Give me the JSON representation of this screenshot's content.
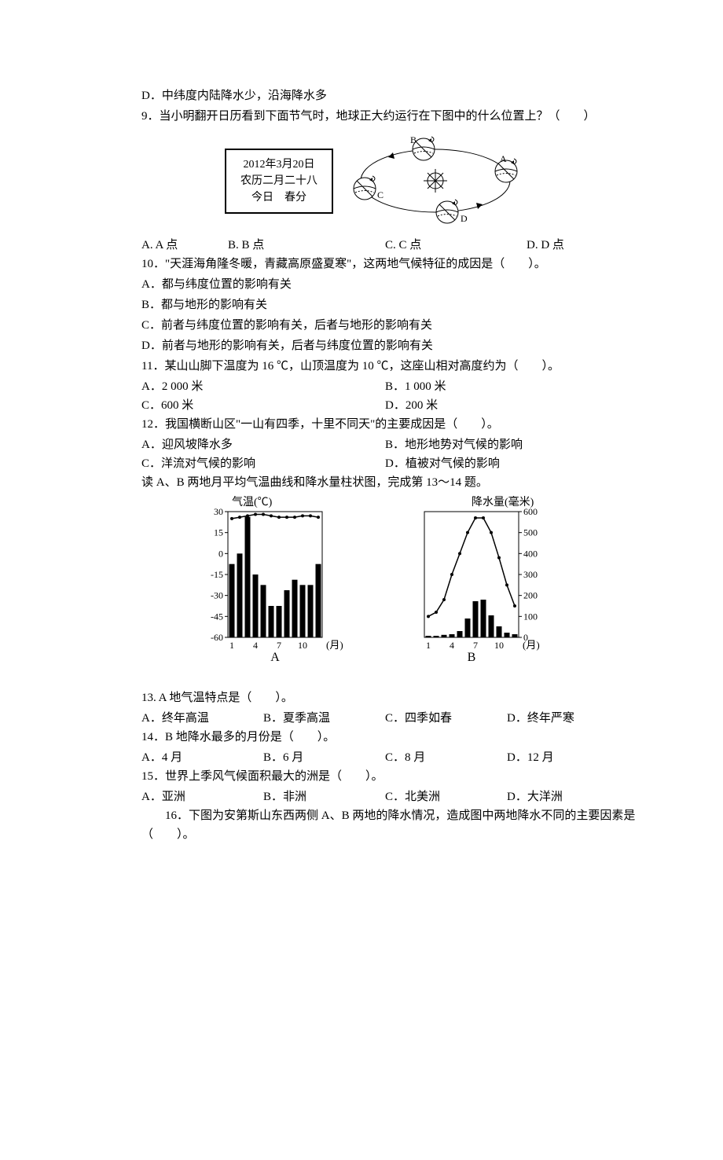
{
  "q8d": "D．中纬度内陆降水少，沿海降水多",
  "q9": {
    "stem": "9．当小明翻开日历看到下面节气时，地球正大约运行在下图中的什么位置上？（　　）",
    "calendar": {
      "l1": "2012年3月20日",
      "l2": "农历二月二十八",
      "l3": "今日　春分"
    },
    "labels": {
      "A": "A",
      "B": "B",
      "C": "C",
      "D": "D"
    },
    "A": "A. A 点",
    "B": "B. B 点",
    "C": "C. C 点",
    "D": "D. D 点"
  },
  "q10": {
    "stem": "10．\"天涯海角隆冬暖，青藏高原盛夏寒\"，这两地气候特征的成因是（　　）。",
    "A": "A．都与纬度位置的影响有关",
    "B": "B．都与地形的影响有关",
    "C": "C．前者与纬度位置的影响有关，后者与地形的影响有关",
    "D": "D．前者与地形的影响有关，后者与纬度位置的影响有关"
  },
  "q11": {
    "stem": "11．某山山脚下温度为 16 ℃，山顶温度为 10 ℃，这座山相对高度约为（　　）。",
    "A": "A．2 000 米",
    "B": "B．1 000 米",
    "C": "C．600 米",
    "D": "D．200 米"
  },
  "q12": {
    "stem": "12．我国横断山区\"一山有四季，十里不同天\"的主要成因是（　　）。",
    "A": "A．迎风坡降水多",
    "B": "B．地形地势对气候的影响",
    "C": "C．洋流对气候的影响",
    "D": "D．植被对气候的影响"
  },
  "readAB": "读 A、B 两地月平均气温曲线和降水量柱状图，完成第 13～14 题。",
  "chart": {
    "temp_label": "气温(℃)",
    "precip_label": "降水量(毫米)",
    "month_label": "(月)",
    "label_A": "A",
    "label_B": "B",
    "temp_ticks": [
      {
        "v": 30,
        "y": 20
      },
      {
        "v": 15,
        "y": 40
      },
      {
        "v": 0,
        "y": 60
      },
      {
        "v": -15,
        "y": 80
      },
      {
        "v": -30,
        "y": 100
      },
      {
        "v": -45,
        "y": 120
      },
      {
        "v": -60,
        "y": 140
      }
    ],
    "x_ticks": [
      {
        "v": 1,
        "x": 0
      },
      {
        "v": 4,
        "x": 3
      },
      {
        "v": 7,
        "x": 6
      },
      {
        "v": 10,
        "x": 9
      }
    ],
    "A": {
      "temp": [
        25,
        26,
        27,
        28,
        28,
        27,
        26,
        26,
        26,
        27,
        27,
        26
      ],
      "precip_bars": [
        70,
        80,
        115,
        60,
        50,
        30,
        30,
        45,
        55,
        50,
        50,
        70
      ],
      "temp_color": "#000000",
      "bar_color": "#000000",
      "bg": "#ffffff"
    },
    "B": {
      "precip_ticks": [
        {
          "v": 600,
          "y": 20
        },
        {
          "v": 500,
          "y": 40
        },
        {
          "v": 400,
          "y": 60
        },
        {
          "v": 300,
          "y": 80
        },
        {
          "v": 200,
          "y": 100
        },
        {
          "v": 100,
          "y": 120
        },
        {
          "v": 0,
          "y": 140
        }
      ],
      "temp_curve": [
        -20,
        -18,
        -12,
        0,
        10,
        20,
        27,
        27,
        20,
        8,
        -5,
        -15
      ],
      "precip_bars": [
        5,
        5,
        8,
        10,
        20,
        60,
        115,
        120,
        70,
        35,
        15,
        10
      ],
      "temp_color": "#000000",
      "bar_color": "#000000",
      "bg": "#ffffff"
    }
  },
  "q13": {
    "stem": "13. A 地气温特点是（　　）。",
    "A": "A．终年高温",
    "B": "B．夏季高温",
    "C": "C．四季如春",
    "D": "D．终年严寒"
  },
  "q14": {
    "stem": "14．B 地降水最多的月份是（　　）。",
    "A": "A．4 月",
    "B": "B．6 月",
    "C": "C．8 月",
    "D": "D．12 月"
  },
  "q15": {
    "stem": "15．世界上季风气候面积最大的洲是（　　）。",
    "A": "A．亚洲",
    "B": "B．非洲",
    "C": "C．北美洲",
    "D": "D．大洋洲"
  },
  "q16": "16．下图为安第斯山东西两侧 A、B 两地的降水情况，造成图中两地降水不同的主要因素是（　　）。"
}
